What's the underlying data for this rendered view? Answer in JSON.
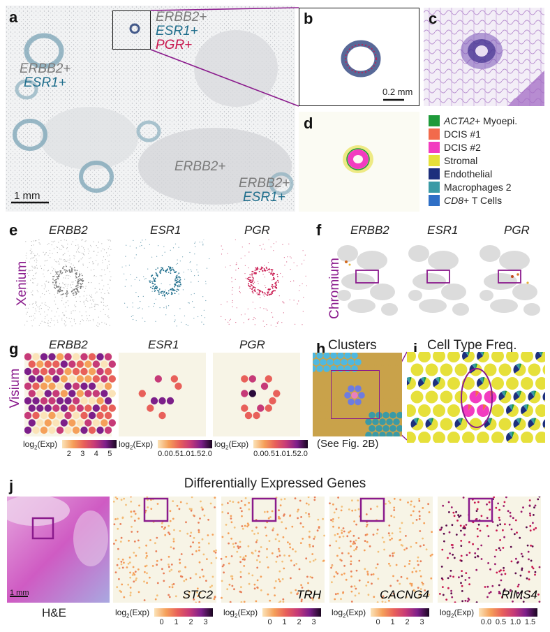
{
  "panels": {
    "a": "a",
    "b": "b",
    "c": "c",
    "d": "d",
    "e": "e",
    "f": "f",
    "g": "g",
    "h": "h",
    "i": "i",
    "j": "j"
  },
  "panel_a": {
    "callout_box": [
      "ERBB2+",
      "ESR1+",
      "PGR+"
    ],
    "left_label": [
      "ERBB2+",
      "ESR1+"
    ],
    "center_label": "ERBB2+",
    "right_label": [
      "ERBB2+",
      "ESR1+"
    ],
    "scalebar": "1 mm"
  },
  "panel_b": {
    "scalebar": "0.2 mm"
  },
  "legend": {
    "items": [
      {
        "prefix": "ACTA2",
        "suffix": "+ Myoepi.",
        "color": "#1e9a3a"
      },
      {
        "prefix": "",
        "suffix": "DCIS #1",
        "color": "#f26a4c"
      },
      {
        "prefix": "",
        "suffix": "DCIS #2",
        "color": "#f23cc0"
      },
      {
        "prefix": "",
        "suffix": "Stromal",
        "color": "#e6e03a"
      },
      {
        "prefix": "",
        "suffix": "Endothelial",
        "color": "#1d2f7c"
      },
      {
        "prefix": "",
        "suffix": "Macrophages 2",
        "color": "#3a9aa6"
      },
      {
        "prefix": "CD8",
        "suffix": "+ T Cells",
        "color": "#2f6fc6"
      }
    ]
  },
  "row_e": {
    "side": "Xenium",
    "genes": [
      "ERBB2",
      "ESR1",
      "PGR"
    ]
  },
  "row_f": {
    "side": "Chromium",
    "genes": [
      "ERBB2",
      "ESR1",
      "PGR"
    ]
  },
  "row_g": {
    "side": "Visium",
    "genes": [
      "ERBB2",
      "ESR1",
      "PGR"
    ],
    "bars": [
      {
        "label": "log2(Exp)",
        "ticks": [
          "2",
          "3",
          "4",
          "5"
        ]
      },
      {
        "label": "log2(Exp)",
        "ticks": [
          "0.0",
          "0.5",
          "1.0",
          "1.5",
          "2.0"
        ]
      },
      {
        "label": "log2(Exp)",
        "ticks": [
          "0.0",
          "0.5",
          "1.0",
          "1.5",
          "2.0"
        ]
      }
    ]
  },
  "panel_h": {
    "title": "Clusters",
    "caption": "(See Fig. 2B)"
  },
  "panel_i": {
    "title": "Cell Type Freq."
  },
  "panel_j": {
    "title": "Differentially Expressed Genes",
    "he_scalebar": "1 mm",
    "he_caption": "H&E",
    "genes": [
      "STC2",
      "TRH",
      "CACNG4",
      "RIMS4"
    ],
    "bars": [
      {
        "label": "log2(Exp)",
        "ticks": [
          "0",
          "1",
          "2",
          "3"
        ]
      },
      {
        "label": "log2(Exp)",
        "ticks": [
          "0",
          "1",
          "2",
          "3"
        ]
      },
      {
        "label": "log2(Exp)",
        "ticks": [
          "0",
          "1",
          "2",
          "3"
        ]
      },
      {
        "label": "log2(Exp)",
        "ticks": [
          "0.0",
          "0.5",
          "1.0",
          "1.5"
        ]
      }
    ]
  },
  "colors": {
    "purple_accent": "#8a1a8c",
    "erbb2_gray": "#7a7a7a",
    "esr1_teal": "#1f6e8c",
    "pgr_magenta": "#c8174e"
  }
}
